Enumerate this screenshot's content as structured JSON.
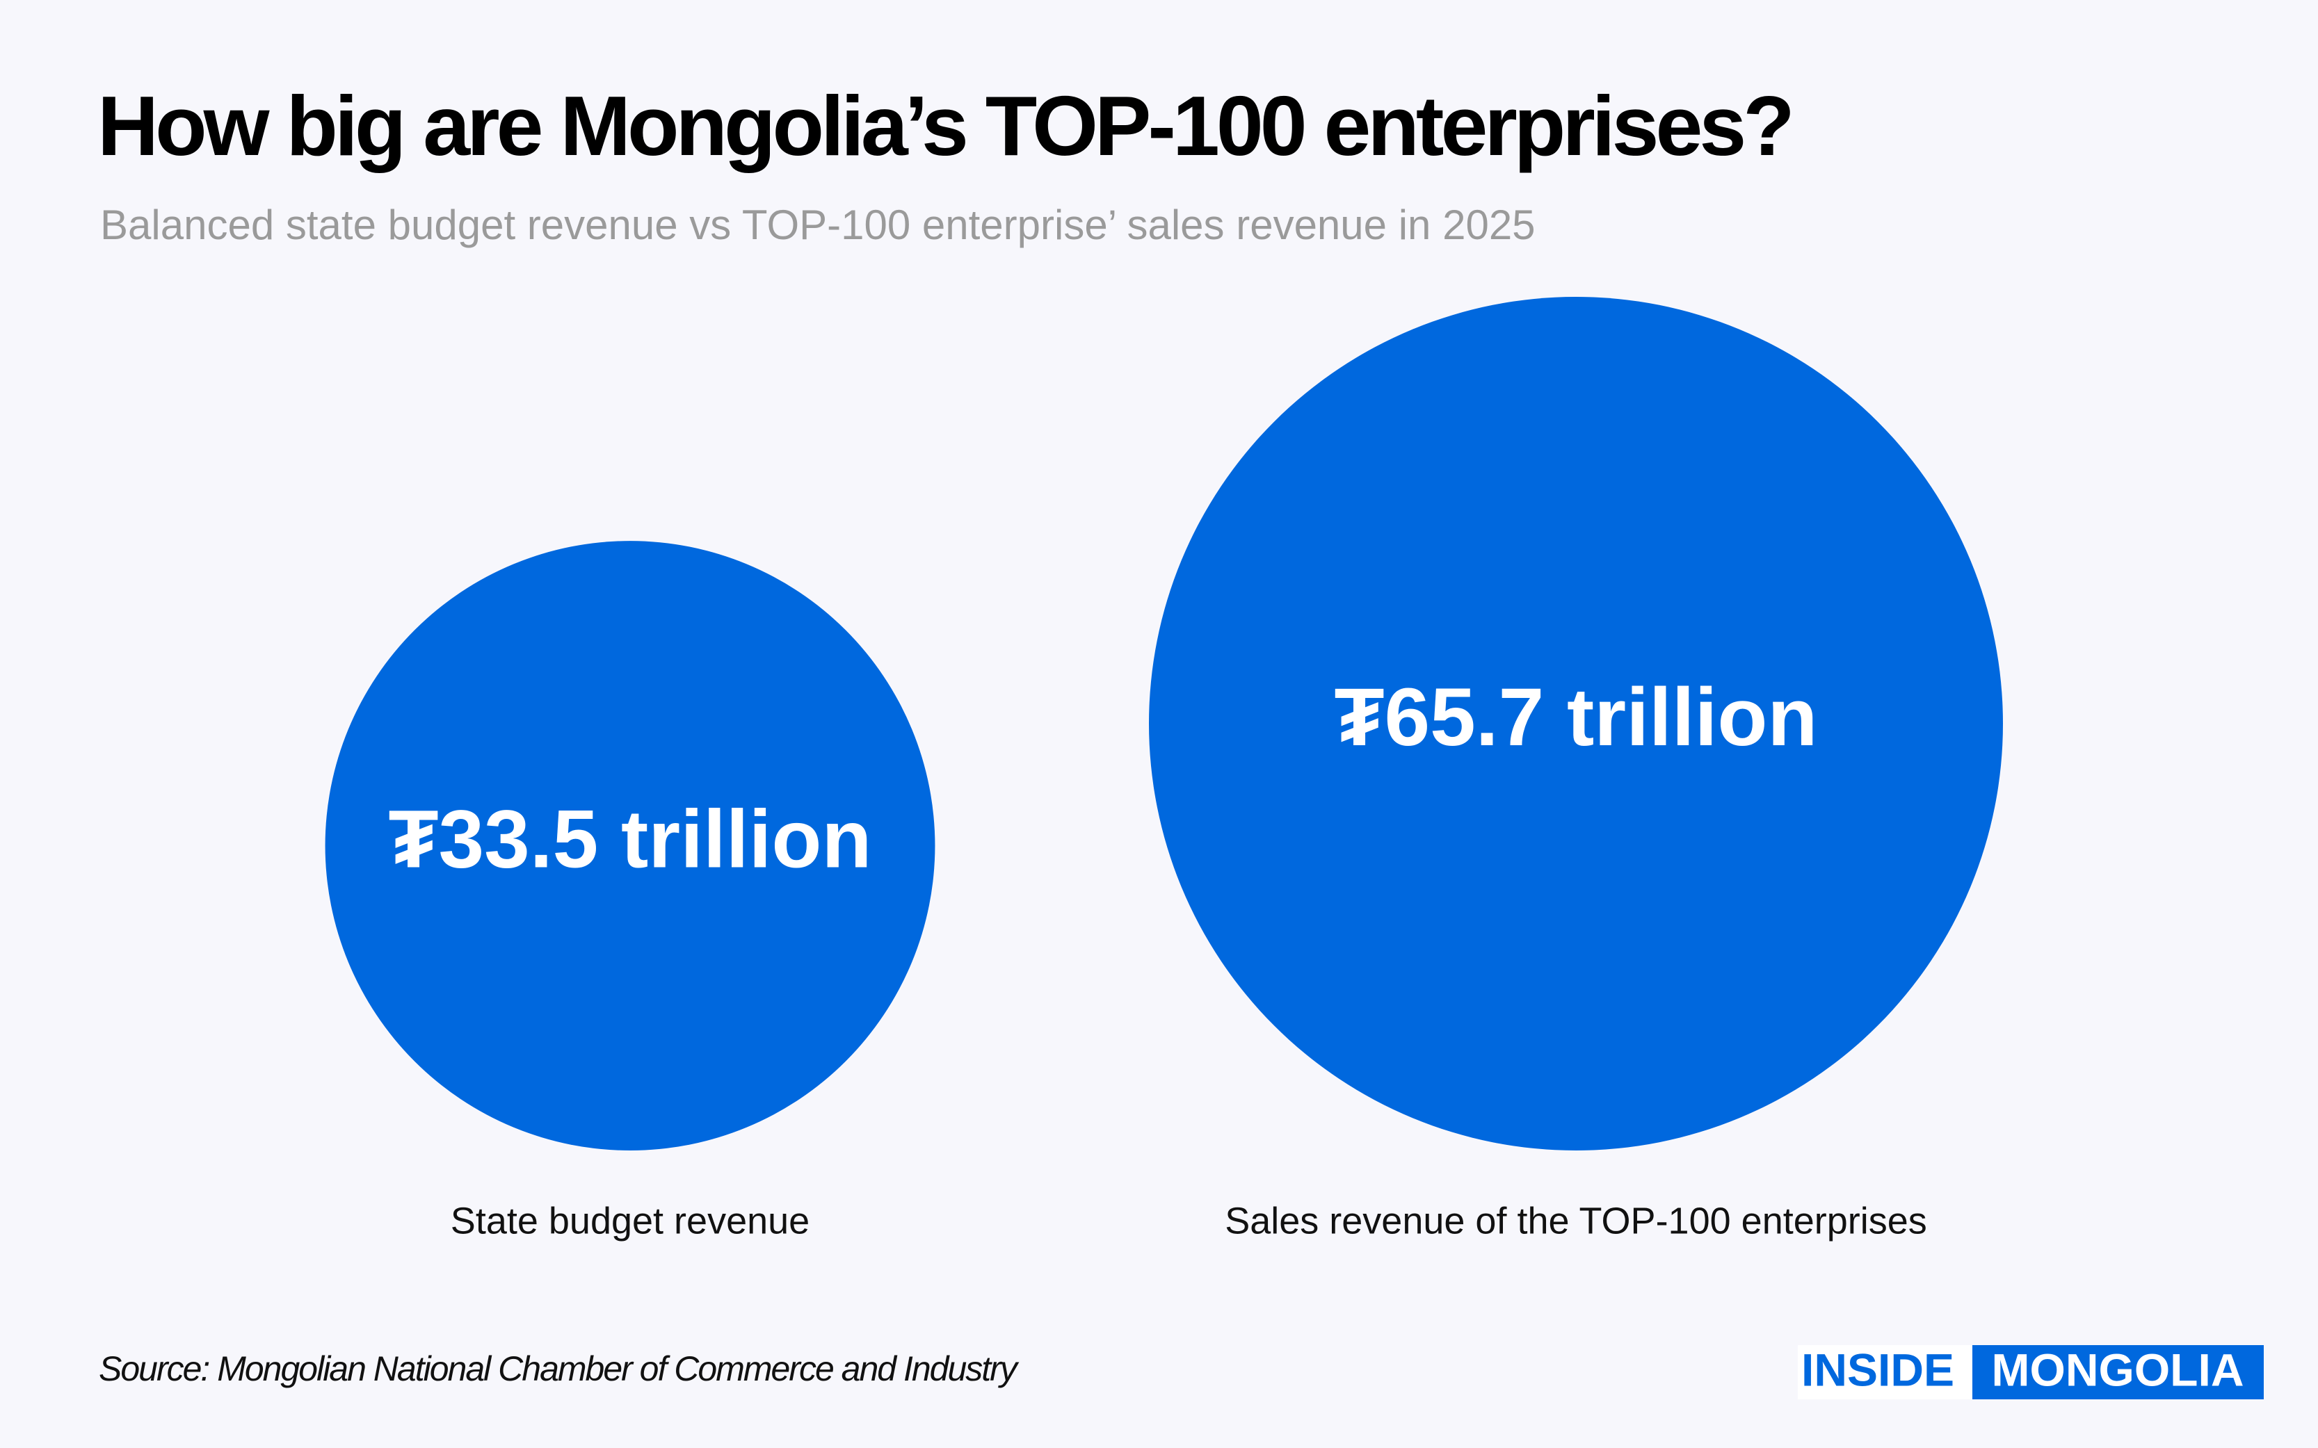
{
  "chart_data": {
    "type": "bubble",
    "title": "How big are Mongolia’s TOP-100 enterprises?",
    "subtitle": "Balanced state budget revenue vs TOP-100 enterprise’ sales revenue in 2025",
    "categories": [
      "State budget revenue",
      "Sales revenue of the TOP-100 enterprises"
    ],
    "values": [
      33.5,
      65.7
    ],
    "value_labels": [
      "₮33.5 trillion",
      "₮65.7 trillion"
    ],
    "color": "#0068de",
    "source": "Source: Mongolian National Chamber of Commerce and Industry"
  },
  "brand": {
    "left": "INSIDE",
    "right": "MONGOLIA"
  }
}
